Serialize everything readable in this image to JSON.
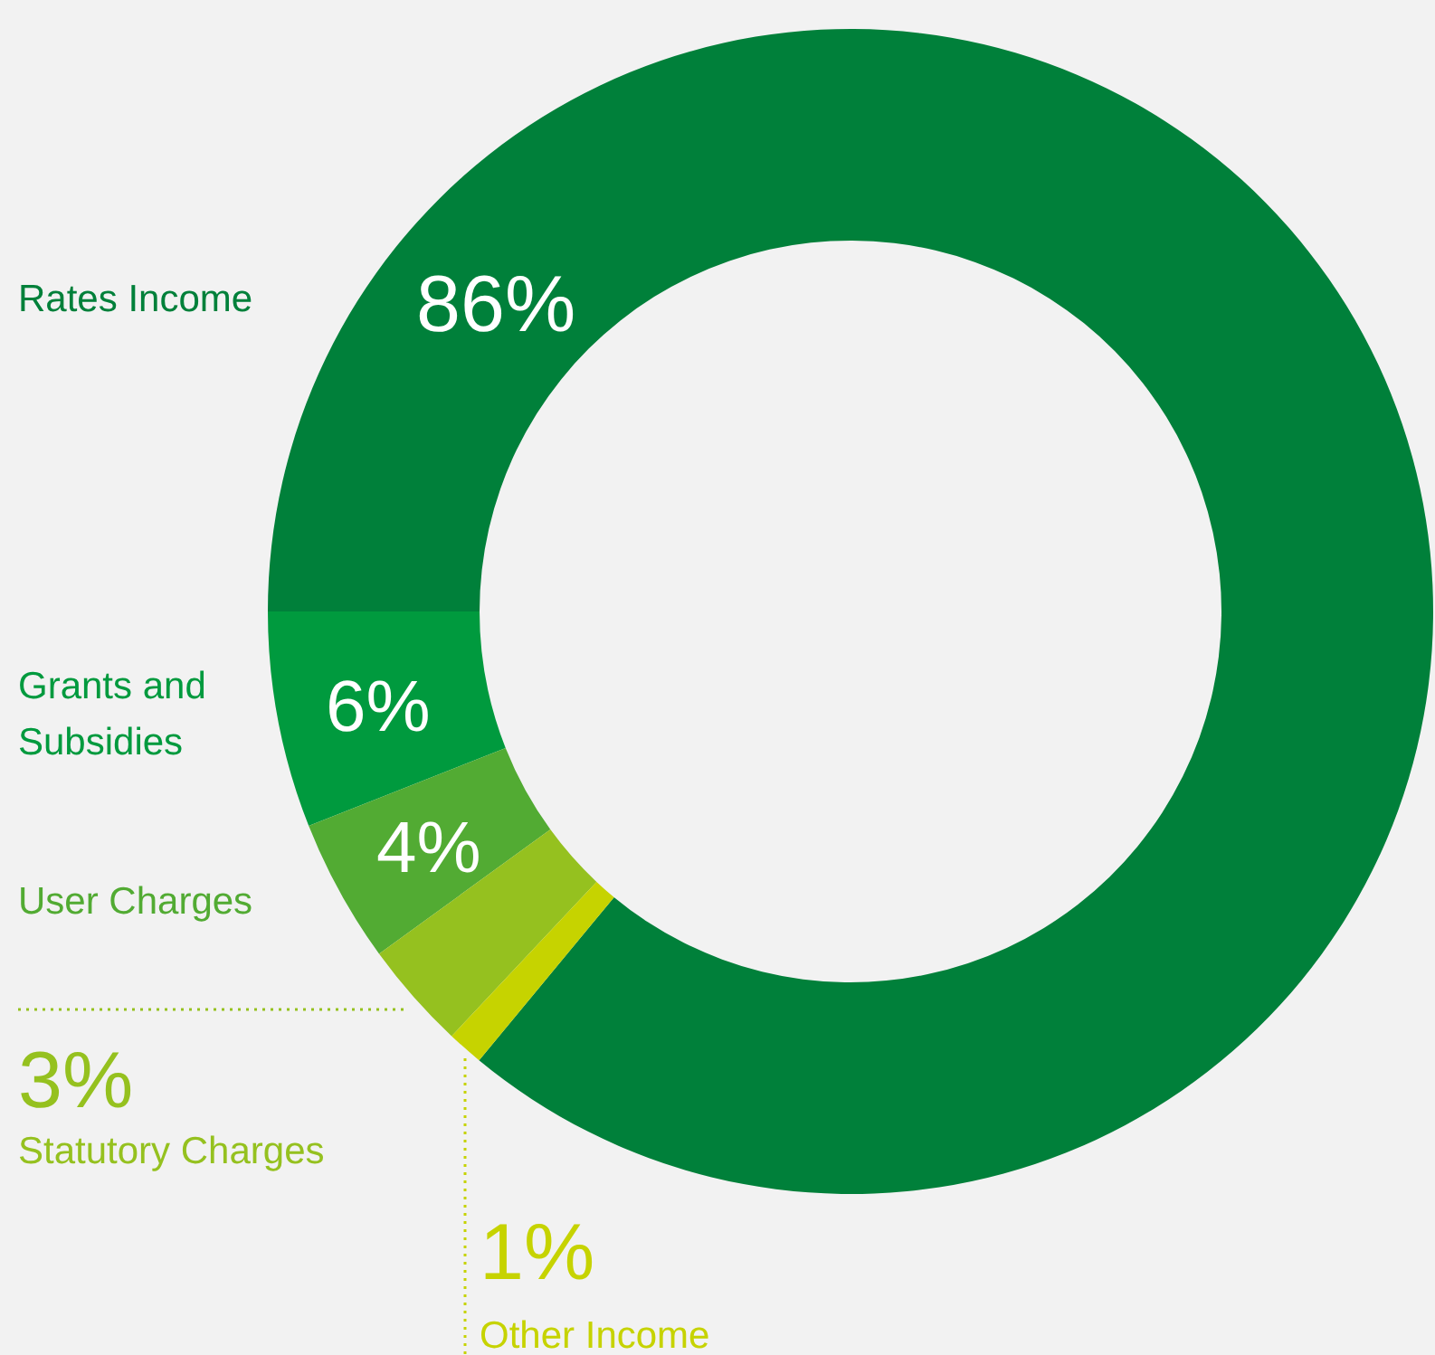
{
  "chart_data": {
    "type": "donut",
    "categories": [
      "Rates Income",
      "Grants and Subsidies",
      "User Charges",
      "Statutory Charges",
      "Other Income"
    ],
    "values": [
      86,
      6,
      4,
      3,
      1
    ],
    "colors": [
      "#00803a",
      "#009a3e",
      "#52ab33",
      "#95c11f",
      "#c6d300"
    ],
    "value_labels": [
      "86%",
      "6%",
      "4%",
      "3%",
      "1%"
    ]
  }
}
